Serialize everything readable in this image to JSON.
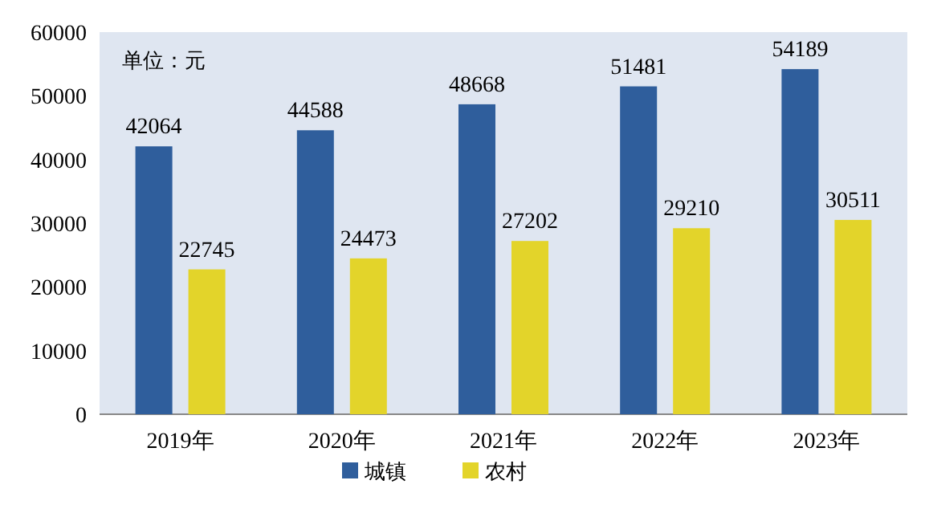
{
  "chart_data": {
    "type": "bar",
    "categories": [
      "2019年",
      "2020年",
      "2021年",
      "2022年",
      "2023年"
    ],
    "series": [
      {
        "name": "城镇",
        "color": "#2f5e9c",
        "values": [
          42064,
          44588,
          48668,
          51481,
          54189
        ]
      },
      {
        "name": "农村",
        "color": "#e3d42a",
        "values": [
          22745,
          24473,
          27202,
          29210,
          30511
        ]
      }
    ],
    "ylim": [
      0,
      60000
    ],
    "yticks": [
      0,
      10000,
      20000,
      30000,
      40000,
      50000,
      60000
    ],
    "annotations": [
      "单位：元"
    ],
    "data_labels": true,
    "legend": "bottom"
  }
}
